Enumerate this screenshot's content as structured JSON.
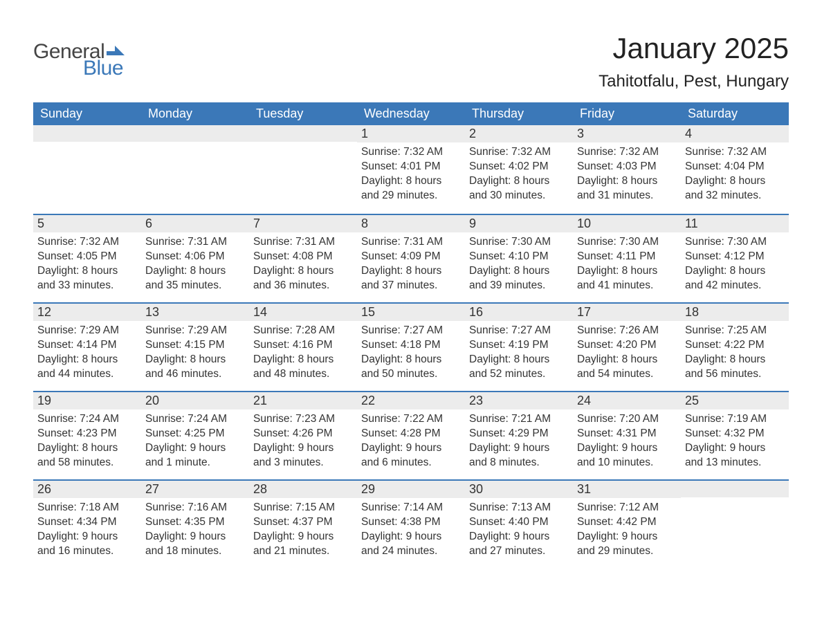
{
  "logo": {
    "text_general": "General",
    "text_blue": "Blue",
    "general_color": "#444444",
    "blue_color": "#3b78b8",
    "flag_color": "#3b78b8"
  },
  "title": {
    "month": "January 2025",
    "location": "Tahitotfalu, Pest, Hungary",
    "month_fontsize": 42,
    "location_fontsize": 24,
    "text_color": "#222222"
  },
  "colors": {
    "header_bg": "#3b78b8",
    "header_text": "#ffffff",
    "daynum_bg": "#ececec",
    "row_border": "#3b78b8",
    "body_text": "#333333",
    "page_bg": "#ffffff"
  },
  "calendar": {
    "day_labels": [
      "Sunday",
      "Monday",
      "Tuesday",
      "Wednesday",
      "Thursday",
      "Friday",
      "Saturday"
    ],
    "weeks": [
      [
        {
          "day": "",
          "sunrise": "",
          "sunset": "",
          "daylight1": "",
          "daylight2": ""
        },
        {
          "day": "",
          "sunrise": "",
          "sunset": "",
          "daylight1": "",
          "daylight2": ""
        },
        {
          "day": "",
          "sunrise": "",
          "sunset": "",
          "daylight1": "",
          "daylight2": ""
        },
        {
          "day": "1",
          "sunrise": "Sunrise: 7:32 AM",
          "sunset": "Sunset: 4:01 PM",
          "daylight1": "Daylight: 8 hours",
          "daylight2": "and 29 minutes."
        },
        {
          "day": "2",
          "sunrise": "Sunrise: 7:32 AM",
          "sunset": "Sunset: 4:02 PM",
          "daylight1": "Daylight: 8 hours",
          "daylight2": "and 30 minutes."
        },
        {
          "day": "3",
          "sunrise": "Sunrise: 7:32 AM",
          "sunset": "Sunset: 4:03 PM",
          "daylight1": "Daylight: 8 hours",
          "daylight2": "and 31 minutes."
        },
        {
          "day": "4",
          "sunrise": "Sunrise: 7:32 AM",
          "sunset": "Sunset: 4:04 PM",
          "daylight1": "Daylight: 8 hours",
          "daylight2": "and 32 minutes."
        }
      ],
      [
        {
          "day": "5",
          "sunrise": "Sunrise: 7:32 AM",
          "sunset": "Sunset: 4:05 PM",
          "daylight1": "Daylight: 8 hours",
          "daylight2": "and 33 minutes."
        },
        {
          "day": "6",
          "sunrise": "Sunrise: 7:31 AM",
          "sunset": "Sunset: 4:06 PM",
          "daylight1": "Daylight: 8 hours",
          "daylight2": "and 35 minutes."
        },
        {
          "day": "7",
          "sunrise": "Sunrise: 7:31 AM",
          "sunset": "Sunset: 4:08 PM",
          "daylight1": "Daylight: 8 hours",
          "daylight2": "and 36 minutes."
        },
        {
          "day": "8",
          "sunrise": "Sunrise: 7:31 AM",
          "sunset": "Sunset: 4:09 PM",
          "daylight1": "Daylight: 8 hours",
          "daylight2": "and 37 minutes."
        },
        {
          "day": "9",
          "sunrise": "Sunrise: 7:30 AM",
          "sunset": "Sunset: 4:10 PM",
          "daylight1": "Daylight: 8 hours",
          "daylight2": "and 39 minutes."
        },
        {
          "day": "10",
          "sunrise": "Sunrise: 7:30 AM",
          "sunset": "Sunset: 4:11 PM",
          "daylight1": "Daylight: 8 hours",
          "daylight2": "and 41 minutes."
        },
        {
          "day": "11",
          "sunrise": "Sunrise: 7:30 AM",
          "sunset": "Sunset: 4:12 PM",
          "daylight1": "Daylight: 8 hours",
          "daylight2": "and 42 minutes."
        }
      ],
      [
        {
          "day": "12",
          "sunrise": "Sunrise: 7:29 AM",
          "sunset": "Sunset: 4:14 PM",
          "daylight1": "Daylight: 8 hours",
          "daylight2": "and 44 minutes."
        },
        {
          "day": "13",
          "sunrise": "Sunrise: 7:29 AM",
          "sunset": "Sunset: 4:15 PM",
          "daylight1": "Daylight: 8 hours",
          "daylight2": "and 46 minutes."
        },
        {
          "day": "14",
          "sunrise": "Sunrise: 7:28 AM",
          "sunset": "Sunset: 4:16 PM",
          "daylight1": "Daylight: 8 hours",
          "daylight2": "and 48 minutes."
        },
        {
          "day": "15",
          "sunrise": "Sunrise: 7:27 AM",
          "sunset": "Sunset: 4:18 PM",
          "daylight1": "Daylight: 8 hours",
          "daylight2": "and 50 minutes."
        },
        {
          "day": "16",
          "sunrise": "Sunrise: 7:27 AM",
          "sunset": "Sunset: 4:19 PM",
          "daylight1": "Daylight: 8 hours",
          "daylight2": "and 52 minutes."
        },
        {
          "day": "17",
          "sunrise": "Sunrise: 7:26 AM",
          "sunset": "Sunset: 4:20 PM",
          "daylight1": "Daylight: 8 hours",
          "daylight2": "and 54 minutes."
        },
        {
          "day": "18",
          "sunrise": "Sunrise: 7:25 AM",
          "sunset": "Sunset: 4:22 PM",
          "daylight1": "Daylight: 8 hours",
          "daylight2": "and 56 minutes."
        }
      ],
      [
        {
          "day": "19",
          "sunrise": "Sunrise: 7:24 AM",
          "sunset": "Sunset: 4:23 PM",
          "daylight1": "Daylight: 8 hours",
          "daylight2": "and 58 minutes."
        },
        {
          "day": "20",
          "sunrise": "Sunrise: 7:24 AM",
          "sunset": "Sunset: 4:25 PM",
          "daylight1": "Daylight: 9 hours",
          "daylight2": "and 1 minute."
        },
        {
          "day": "21",
          "sunrise": "Sunrise: 7:23 AM",
          "sunset": "Sunset: 4:26 PM",
          "daylight1": "Daylight: 9 hours",
          "daylight2": "and 3 minutes."
        },
        {
          "day": "22",
          "sunrise": "Sunrise: 7:22 AM",
          "sunset": "Sunset: 4:28 PM",
          "daylight1": "Daylight: 9 hours",
          "daylight2": "and 6 minutes."
        },
        {
          "day": "23",
          "sunrise": "Sunrise: 7:21 AM",
          "sunset": "Sunset: 4:29 PM",
          "daylight1": "Daylight: 9 hours",
          "daylight2": "and 8 minutes."
        },
        {
          "day": "24",
          "sunrise": "Sunrise: 7:20 AM",
          "sunset": "Sunset: 4:31 PM",
          "daylight1": "Daylight: 9 hours",
          "daylight2": "and 10 minutes."
        },
        {
          "day": "25",
          "sunrise": "Sunrise: 7:19 AM",
          "sunset": "Sunset: 4:32 PM",
          "daylight1": "Daylight: 9 hours",
          "daylight2": "and 13 minutes."
        }
      ],
      [
        {
          "day": "26",
          "sunrise": "Sunrise: 7:18 AM",
          "sunset": "Sunset: 4:34 PM",
          "daylight1": "Daylight: 9 hours",
          "daylight2": "and 16 minutes."
        },
        {
          "day": "27",
          "sunrise": "Sunrise: 7:16 AM",
          "sunset": "Sunset: 4:35 PM",
          "daylight1": "Daylight: 9 hours",
          "daylight2": "and 18 minutes."
        },
        {
          "day": "28",
          "sunrise": "Sunrise: 7:15 AM",
          "sunset": "Sunset: 4:37 PM",
          "daylight1": "Daylight: 9 hours",
          "daylight2": "and 21 minutes."
        },
        {
          "day": "29",
          "sunrise": "Sunrise: 7:14 AM",
          "sunset": "Sunset: 4:38 PM",
          "daylight1": "Daylight: 9 hours",
          "daylight2": "and 24 minutes."
        },
        {
          "day": "30",
          "sunrise": "Sunrise: 7:13 AM",
          "sunset": "Sunset: 4:40 PM",
          "daylight1": "Daylight: 9 hours",
          "daylight2": "and 27 minutes."
        },
        {
          "day": "31",
          "sunrise": "Sunrise: 7:12 AM",
          "sunset": "Sunset: 4:42 PM",
          "daylight1": "Daylight: 9 hours",
          "daylight2": "and 29 minutes."
        },
        {
          "day": "",
          "sunrise": "",
          "sunset": "",
          "daylight1": "",
          "daylight2": ""
        }
      ]
    ]
  }
}
